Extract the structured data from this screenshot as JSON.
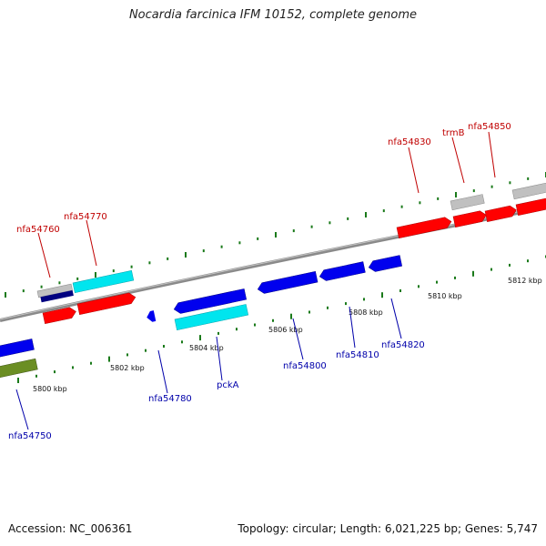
{
  "title": "Nocardia farcinica IFM 10152, complete genome",
  "footer": {
    "accession": "Accession: NC_006361",
    "summary": "Topology: circular; Length: 6,021,225 bp; Genes: 5,747"
  },
  "colors": {
    "forward_label": "#c00000",
    "reverse_label": "#0000aa",
    "backbone": "#888888",
    "tick": "#1a7a1a",
    "cds_red": "#ff0000",
    "cds_blue": "#0000ee",
    "cds_cyan": "#00e5ee",
    "cds_grey": "#c0c0c0",
    "cds_navy": "#000080",
    "cds_olive": "#6b8e23"
  },
  "scale_labels": [
    "5800 kbp",
    "5802 kbp",
    "5804 kbp",
    "5806 kbp",
    "5808 kbp",
    "5810 kbp",
    "5812 kbp"
  ],
  "forward_genes": [
    "nfa54760",
    "nfa54770",
    "nfa54830",
    "trmB",
    "nfa54850"
  ],
  "reverse_genes": [
    "nfa54750",
    "nfa54780",
    "pckA",
    "nfa54800",
    "nfa54810",
    "nfa54820"
  ]
}
